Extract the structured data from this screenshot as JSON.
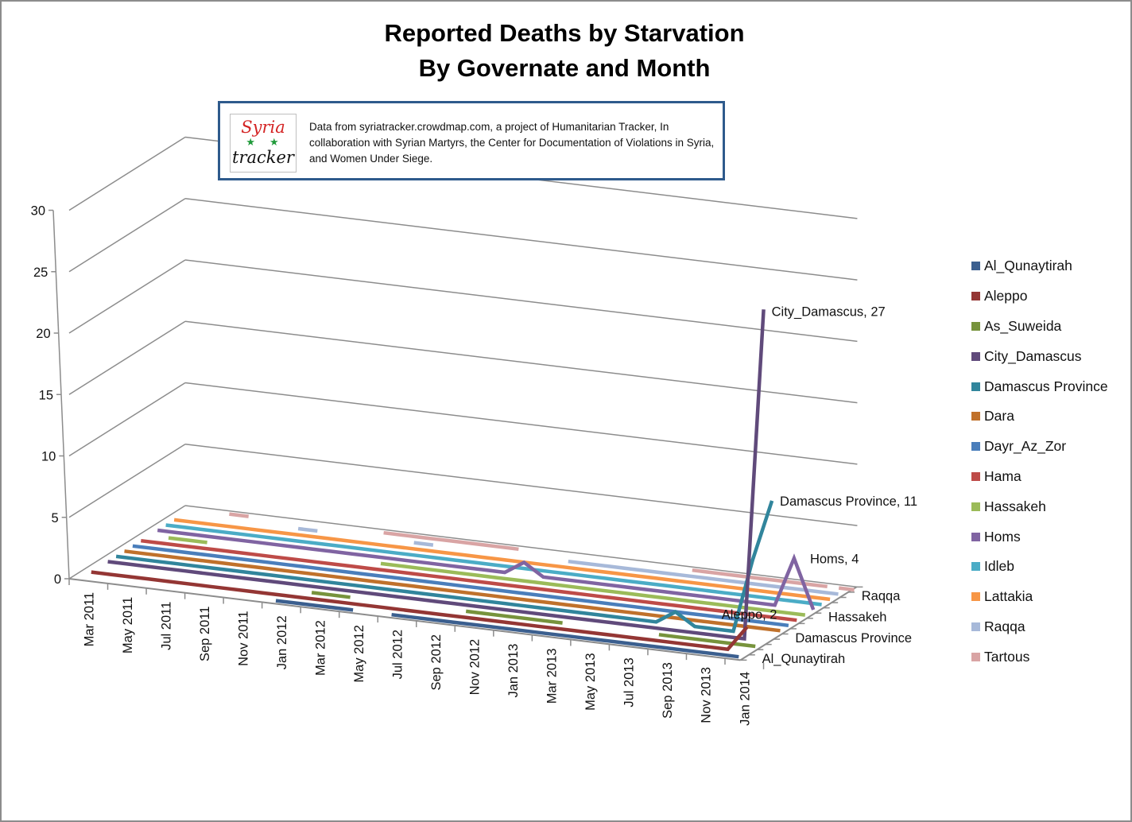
{
  "chart_data": {
    "type": "line",
    "variant": "3d-line",
    "title": [
      "Reported Deaths by Starvation",
      "By Governate and Month"
    ],
    "source_note": "Data from syriatracker.crowdmap.com, a project of Humanitarian Tracker, In collaboration with Syrian Martyrs, the Center for Documentation of Violations in Syria, and Women Under Siege.",
    "logo": {
      "line1": "Syria",
      "stars": "★★",
      "line2": "tracker"
    },
    "ylim": [
      0,
      30
    ],
    "y_ticks": [
      "0",
      "5",
      "10",
      "15",
      "20",
      "25",
      "30"
    ],
    "x_tick_labels": [
      "Mar 2011",
      "May 2011",
      "Jul 2011",
      "Sep 2011",
      "Nov 2011",
      "Jan 2012",
      "Mar 2012",
      "May 2012",
      "Jul 2012",
      "Sep 2012",
      "Nov 2012",
      "Jan 2013",
      "Mar 2013",
      "May 2013",
      "Jul 2013",
      "Sep 2013",
      "Nov 2013",
      "Jan 2014"
    ],
    "months_count": 35,
    "depth_tick_labels": [
      "Al_Qunaytirah",
      "Damascus Province",
      "Hassakeh",
      "Raqqa"
    ],
    "legend_position": "right",
    "series": [
      {
        "name": "Al_Qunaytirah",
        "color": "#3b5f8f",
        "segments": [
          [
            10,
            14
          ],
          [
            16,
            34
          ]
        ],
        "points": {}
      },
      {
        "name": "Aleppo",
        "color": "#943634",
        "segments": [
          [
            0,
            34
          ]
        ],
        "points": {
          "33": 0,
          "34": 2
        }
      },
      {
        "name": "As_Suweida",
        "color": "#77933c",
        "segments": [
          [
            11,
            13
          ],
          [
            19,
            24
          ],
          [
            29,
            34
          ]
        ],
        "points": {}
      },
      {
        "name": "City_Damascus",
        "color": "#604a7b",
        "segments": [
          [
            0,
            34
          ]
        ],
        "points": {
          "33": 0,
          "34": 27
        }
      },
      {
        "name": "Damascus Province",
        "color": "#31859c",
        "segments": [
          [
            0,
            34
          ]
        ],
        "points": {
          "28": 0,
          "29": 1,
          "30": 0,
          "33": 6,
          "34": 11
        }
      },
      {
        "name": "Dara",
        "color": "#c0712b",
        "segments": [
          [
            0,
            34
          ]
        ],
        "points": {}
      },
      {
        "name": "Dayr_Az_Zor",
        "color": "#4a7ebb",
        "segments": [
          [
            0,
            34
          ]
        ],
        "points": {}
      },
      {
        "name": "Hama",
        "color": "#be4b48",
        "segments": [
          [
            0,
            34
          ]
        ],
        "points": {}
      },
      {
        "name": "Hassakeh",
        "color": "#9bbb59",
        "segments": [
          [
            1,
            3
          ],
          [
            12,
            34
          ]
        ],
        "points": {}
      },
      {
        "name": "Homs",
        "color": "#8064a2",
        "segments": [
          [
            0,
            34
          ]
        ],
        "points": {
          "18": 0,
          "19": 1,
          "20": 0,
          "32": 0,
          "33": 4,
          "34": 0
        }
      },
      {
        "name": "Idleb",
        "color": "#4bacc6",
        "segments": [
          [
            0,
            34
          ]
        ],
        "points": {}
      },
      {
        "name": "Lattakia",
        "color": "#f79646",
        "segments": [
          [
            0,
            34
          ]
        ],
        "points": {}
      },
      {
        "name": "Raqqa",
        "color": "#a7b9d9",
        "segments": [
          [
            6,
            7
          ],
          [
            12,
            13
          ],
          [
            20,
            34
          ]
        ],
        "points": {}
      },
      {
        "name": "Tartous",
        "color": "#d9a4a4",
        "segments": [
          [
            2,
            3
          ],
          [
            10,
            17
          ],
          [
            26,
            33
          ],
          [
            34,
            34
          ]
        ],
        "points": {}
      }
    ],
    "data_labels": [
      {
        "series": "City_Damascus",
        "text": "City_Damascus, 27"
      },
      {
        "series": "Damascus Province",
        "text": "Damascus Province, 11"
      },
      {
        "series": "Homs",
        "text": "Homs, 4"
      },
      {
        "series": "Aleppo",
        "text": "Aleppo, 2"
      }
    ]
  }
}
